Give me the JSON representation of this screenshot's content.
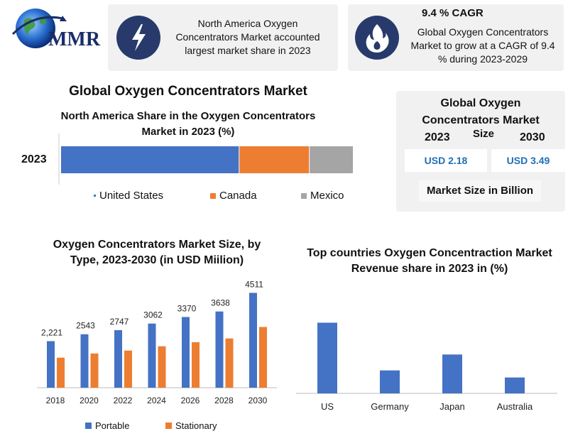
{
  "logo": {
    "text": "MMR"
  },
  "info_cards": [
    {
      "text": "North America Oxygen Concentrators Market accounted largest market share in 2023",
      "icon": "lightning-icon"
    },
    {
      "title": "9.4 % CAGR",
      "text": "Global Oxygen Concentrators Market to grow at a CAGR of 9.4 % during 2023-2029",
      "icon": "flame-icon"
    }
  ],
  "share_panel": {
    "heading": "Global Oxygen Concentrators Market",
    "subtitle": "North America Share in the Oxygen Concentrators Market in 2023 (%)"
  },
  "size_box": {
    "title": "Global Oxygen Concentrators Market",
    "size_label": "Size",
    "year_start": "2023",
    "year_end": "2030",
    "value_start": "USD 2.18",
    "value_end": "USD 3.49",
    "footer": "Market Size in Billion"
  },
  "colors": {
    "us": "#4472c4",
    "canada": "#ed7d31",
    "mexico": "#a5a5a5",
    "portable": "#4472c4",
    "stationary": "#ed7d31",
    "icon_bg": "#273a6b",
    "value_text": "#1f6fb5"
  },
  "chart_data": [
    {
      "type": "bar",
      "orientation": "horizontal-stacked",
      "title": "North America Share in the Oxygen Concentrators Market in 2023 (%)",
      "categories": [
        "2023"
      ],
      "series": [
        {
          "name": "United States",
          "values": [
            61
          ]
        },
        {
          "name": "Canada",
          "values": [
            24
          ]
        },
        {
          "name": "Mexico",
          "values": [
            15
          ]
        }
      ],
      "xlim": [
        0,
        100
      ],
      "legend": "bottom"
    },
    {
      "type": "bar",
      "title": "Oxygen Concentrators Market Size, by Type, 2023-2030 (in USD Miilion)",
      "categories": [
        "2018",
        "2020",
        "2022",
        "2024",
        "2026",
        "2028",
        "2030"
      ],
      "total_labels": [
        "2,221",
        "2543",
        "2747",
        "3062",
        "3370",
        "3638",
        "4511"
      ],
      "series": [
        {
          "name": "Portable",
          "values": [
            1350,
            1550,
            1670,
            1860,
            2050,
            2210,
            2750
          ]
        },
        {
          "name": "Stationary",
          "values": [
            871,
            993,
            1077,
            1202,
            1320,
            1428,
            1761
          ]
        }
      ],
      "ylim": [
        0,
        3000
      ],
      "legend": "bottom"
    },
    {
      "type": "bar",
      "title": "Top countries Oxygen Concentraction Market Revenue share in 2023 in (%)",
      "categories": [
        "US",
        "Germany",
        "Japan",
        "Australia"
      ],
      "values": [
        40,
        13,
        22,
        9
      ],
      "ylim": [
        0,
        45
      ]
    }
  ]
}
